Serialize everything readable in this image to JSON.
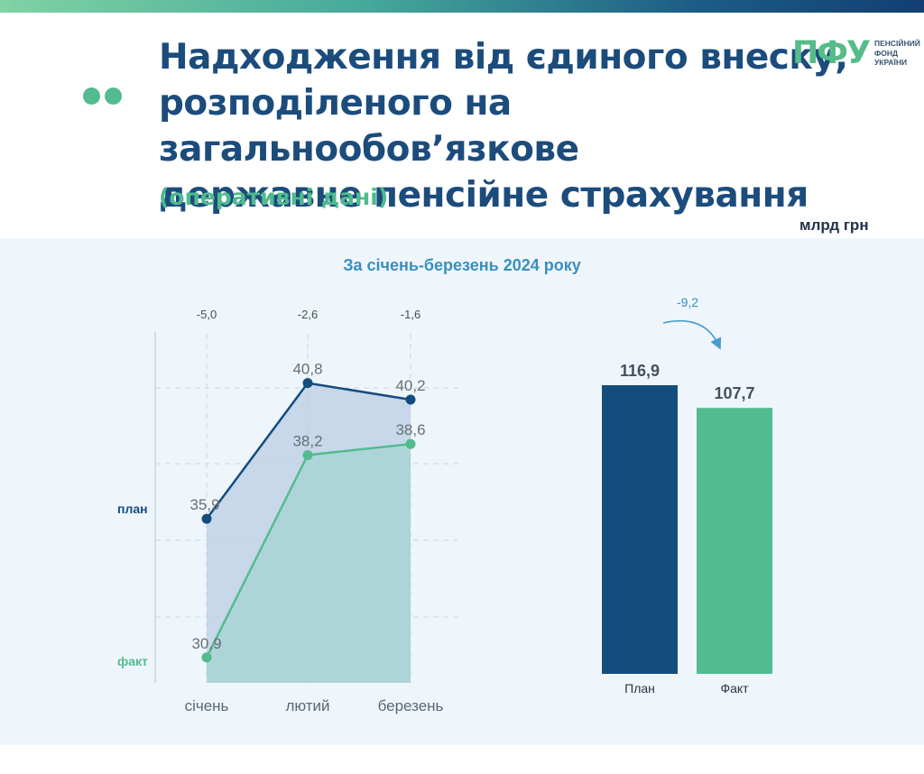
{
  "header": {
    "title_lines": [
      "Надходження від єдиного внеску,",
      "розподіленого на загальнообов’язкове",
      "державне пенсійне страхування"
    ],
    "subtitle": "(оперативні дані)",
    "unit": "млрд грн",
    "period": "За січень-березень 2024 року"
  },
  "logo": {
    "mark": "ПФУ",
    "line1": "ПЕНСІЙНИЙ",
    "line2": "ФОНД",
    "line3": "УКРАЇНИ"
  },
  "colors": {
    "plan": "#154c7e",
    "fact": "#52bb90",
    "title": "#1b4c7c",
    "accent": "#4fba8e"
  },
  "chart_data": [
    {
      "type": "area",
      "categories": [
        "січень",
        "лютий",
        "березень"
      ],
      "series": [
        {
          "name": "план",
          "values": [
            35.9,
            40.8,
            40.2
          ]
        },
        {
          "name": "факт",
          "values": [
            30.9,
            38.2,
            38.6
          ]
        }
      ],
      "differences": [
        "-5,0",
        "-2,6",
        "-1,6"
      ],
      "value_labels": {
        "план": [
          "35,9",
          "40,8",
          "40,2"
        ],
        "факт": [
          "30,9",
          "38,2",
          "38,6"
        ]
      },
      "ylim": [
        30.6,
        41.6
      ],
      "grid": true
    },
    {
      "type": "bar",
      "categories": [
        "План",
        "Факт"
      ],
      "values": [
        116.9,
        107.7
      ],
      "value_labels": [
        "116,9",
        "107,7"
      ],
      "difference": "-9,2",
      "ylim": [
        0,
        123
      ]
    }
  ]
}
